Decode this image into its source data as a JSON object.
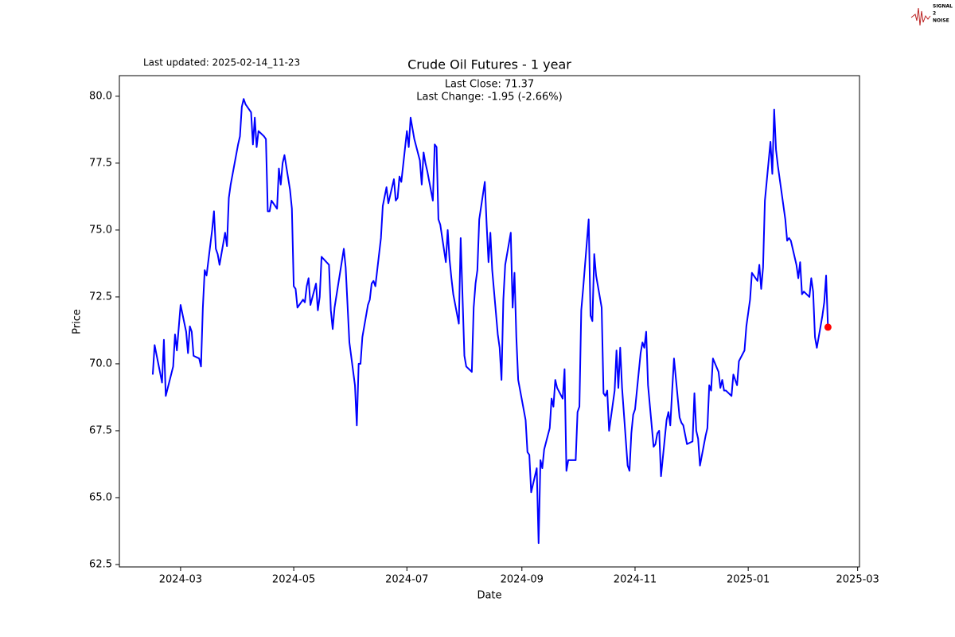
{
  "chart_data": {
    "type": "line",
    "title": "Crude Oil Futures - 1 year",
    "last_updated": "Last updated: 2025-02-14_11-23",
    "annotations": [
      "Last Close: 71.37",
      "Last Change: -1.95 (-2.66%)"
    ],
    "xlabel": "Date",
    "ylabel": "Price",
    "logo": [
      "SIGNAL",
      "2",
      "NOISE"
    ],
    "xlim": [
      "2024-01-28",
      "2025-03-02"
    ],
    "xticks": [
      {
        "value": "2024-03-01",
        "label": "2024-03"
      },
      {
        "value": "2024-05-01",
        "label": "2024-05"
      },
      {
        "value": "2024-07-01",
        "label": "2024-07"
      },
      {
        "value": "2024-09-01",
        "label": "2024-09"
      },
      {
        "value": "2024-11-01",
        "label": "2024-11"
      },
      {
        "value": "2025-01-01",
        "label": "2025-01"
      },
      {
        "value": "2025-03-01",
        "label": "2025-03"
      }
    ],
    "ylim": [
      62.41,
      80.77
    ],
    "yticks": [
      62.5,
      {
        "value": 65,
        "label": "65.0"
      },
      67.5,
      {
        "value": 70,
        "label": "70.0"
      },
      72.5,
      {
        "value": 75,
        "label": "75.0"
      },
      77.5,
      {
        "value": 80,
        "label": "80.0"
      }
    ],
    "grid": false,
    "last_point_color": "#ff0000",
    "x": [
      "2024-02-15",
      "2024-02-16",
      "2024-02-20",
      "2024-02-21",
      "2024-02-22",
      "2024-02-26",
      "2024-02-27",
      "2024-02-28",
      "2024-03-01",
      "2024-03-04",
      "2024-03-05",
      "2024-03-06",
      "2024-03-07",
      "2024-03-08",
      "2024-03-11",
      "2024-03-12",
      "2024-03-13",
      "2024-03-14",
      "2024-03-15",
      "2024-03-18",
      "2024-03-19",
      "2024-03-20",
      "2024-03-21",
      "2024-03-22",
      "2024-03-25",
      "2024-03-26",
      "2024-03-27",
      "2024-03-28",
      "2024-04-01",
      "2024-04-02",
      "2024-04-03",
      "2024-04-04",
      "2024-04-05",
      "2024-04-08",
      "2024-04-09",
      "2024-04-10",
      "2024-04-11",
      "2024-04-12",
      "2024-04-15",
      "2024-04-16",
      "2024-04-17",
      "2024-04-18",
      "2024-04-19",
      "2024-04-22",
      "2024-04-23",
      "2024-04-24",
      "2024-04-25",
      "2024-04-26",
      "2024-04-29",
      "2024-04-30",
      "2024-05-01",
      "2024-05-02",
      "2024-05-03",
      "2024-05-06",
      "2024-05-07",
      "2024-05-08",
      "2024-05-09",
      "2024-05-10",
      "2024-05-13",
      "2024-05-14",
      "2024-05-15",
      "2024-05-16",
      "2024-05-20",
      "2024-05-21",
      "2024-05-22",
      "2024-05-23",
      "2024-05-28",
      "2024-05-29",
      "2024-05-30",
      "2024-05-31",
      "2024-06-03",
      "2024-06-04",
      "2024-06-05",
      "2024-06-06",
      "2024-06-07",
      "2024-06-10",
      "2024-06-11",
      "2024-06-12",
      "2024-06-13",
      "2024-06-14",
      "2024-06-17",
      "2024-06-18",
      "2024-06-20",
      "2024-06-21",
      "2024-06-24",
      "2024-06-25",
      "2024-06-26",
      "2024-06-27",
      "2024-06-28",
      "2024-07-01",
      "2024-07-02",
      "2024-07-03",
      "2024-07-05",
      "2024-07-08",
      "2024-07-09",
      "2024-07-10",
      "2024-07-11",
      "2024-07-12",
      "2024-07-15",
      "2024-07-16",
      "2024-07-17",
      "2024-07-18",
      "2024-07-19",
      "2024-07-22",
      "2024-07-23",
      "2024-07-24",
      "2024-07-25",
      "2024-07-26",
      "2024-07-29",
      "2024-07-30",
      "2024-07-31",
      "2024-08-01",
      "2024-08-02",
      "2024-08-05",
      "2024-08-06",
      "2024-08-07",
      "2024-08-08",
      "2024-08-09",
      "2024-08-12",
      "2024-08-13",
      "2024-08-14",
      "2024-08-15",
      "2024-08-16",
      "2024-08-19",
      "2024-08-20",
      "2024-08-21",
      "2024-08-22",
      "2024-08-23",
      "2024-08-26",
      "2024-08-27",
      "2024-08-28",
      "2024-08-29",
      "2024-08-30",
      "2024-09-03",
      "2024-09-04",
      "2024-09-05",
      "2024-09-06",
      "2024-09-09",
      "2024-09-10",
      "2024-09-11",
      "2024-09-12",
      "2024-09-13",
      "2024-09-16",
      "2024-09-17",
      "2024-09-18",
      "2024-09-19",
      "2024-09-20",
      "2024-09-23",
      "2024-09-24",
      "2024-09-25",
      "2024-09-26",
      "2024-09-27",
      "2024-09-30",
      "2024-10-01",
      "2024-10-02",
      "2024-10-03",
      "2024-10-04",
      "2024-10-07",
      "2024-10-08",
      "2024-10-09",
      "2024-10-10",
      "2024-10-11",
      "2024-10-14",
      "2024-10-15",
      "2024-10-16",
      "2024-10-17",
      "2024-10-18",
      "2024-10-21",
      "2024-10-22",
      "2024-10-23",
      "2024-10-24",
      "2024-10-25",
      "2024-10-28",
      "2024-10-29",
      "2024-10-30",
      "2024-10-31",
      "2024-11-01",
      "2024-11-04",
      "2024-11-05",
      "2024-11-06",
      "2024-11-07",
      "2024-11-08",
      "2024-11-11",
      "2024-11-12",
      "2024-11-13",
      "2024-11-14",
      "2024-11-15",
      "2024-11-18",
      "2024-11-19",
      "2024-11-20",
      "2024-11-21",
      "2024-11-22",
      "2024-11-25",
      "2024-11-26",
      "2024-11-27",
      "2024-11-29",
      "2024-12-02",
      "2024-12-03",
      "2024-12-04",
      "2024-12-05",
      "2024-12-06",
      "2024-12-09",
      "2024-12-10",
      "2024-12-11",
      "2024-12-12",
      "2024-12-13",
      "2024-12-16",
      "2024-12-17",
      "2024-12-18",
      "2024-12-19",
      "2024-12-20",
      "2024-12-23",
      "2024-12-24",
      "2024-12-26",
      "2024-12-27",
      "2024-12-30",
      "2024-12-31",
      "2025-01-02",
      "2025-01-03",
      "2025-01-06",
      "2025-01-07",
      "2025-01-08",
      "2025-01-09",
      "2025-01-10",
      "2025-01-13",
      "2025-01-14",
      "2025-01-15",
      "2025-01-16",
      "2025-01-17",
      "2025-01-21",
      "2025-01-22",
      "2025-01-23",
      "2025-01-24",
      "2025-01-27",
      "2025-01-28",
      "2025-01-29",
      "2025-01-30",
      "2025-01-31",
      "2025-02-03",
      "2025-02-04",
      "2025-02-05",
      "2025-02-06",
      "2025-02-07",
      "2025-02-10",
      "2025-02-11",
      "2025-02-12",
      "2025-02-13"
    ],
    "series": [
      {
        "name": "Close",
        "color": "#0000ff",
        "values": [
          69.6,
          70.7,
          69.3,
          70.9,
          68.8,
          69.9,
          71.1,
          70.5,
          72.2,
          71.2,
          70.4,
          71.4,
          71.2,
          70.3,
          70.2,
          69.9,
          72.1,
          73.5,
          73.3,
          75.0,
          75.7,
          74.3,
          74.1,
          73.7,
          74.9,
          74.4,
          76.2,
          76.7,
          78.2,
          78.5,
          79.6,
          79.9,
          79.7,
          79.4,
          78.2,
          79.2,
          78.1,
          78.7,
          78.5,
          78.4,
          75.7,
          75.7,
          76.1,
          75.8,
          77.3,
          76.7,
          77.5,
          77.8,
          76.5,
          75.8,
          72.9,
          72.8,
          72.1,
          72.4,
          72.3,
          72.9,
          73.2,
          72.2,
          73.0,
          72.0,
          72.5,
          74.0,
          73.7,
          72.0,
          71.3,
          72.1,
          74.3,
          73.6,
          72.2,
          70.8,
          69.2,
          67.7,
          70.0,
          70.0,
          71.0,
          72.2,
          72.4,
          73.0,
          73.1,
          72.9,
          74.7,
          75.9,
          76.6,
          76.0,
          76.9,
          76.1,
          76.2,
          77.0,
          76.8,
          78.7,
          78.1,
          79.2,
          78.4,
          77.6,
          76.7,
          77.9,
          77.5,
          77.2,
          76.1,
          78.2,
          78.1,
          75.4,
          75.2,
          73.8,
          75.0,
          73.9,
          73.2,
          72.6,
          71.5,
          74.7,
          72.5,
          70.3,
          69.9,
          69.7,
          72.1,
          73.0,
          73.5,
          75.4,
          76.8,
          75.2,
          73.8,
          74.9,
          73.5,
          71.1,
          70.6,
          69.4,
          72.4,
          73.7,
          74.9,
          72.1,
          73.4,
          71.0,
          69.4,
          67.9,
          66.7,
          66.6,
          65.2,
          66.1,
          63.3,
          66.4,
          66.1,
          66.8,
          67.6,
          68.7,
          68.4,
          69.4,
          69.1,
          68.7,
          69.8,
          66.0,
          66.4,
          66.4,
          66.4,
          68.2,
          68.4,
          72.0,
          72.8,
          75.4,
          71.8,
          71.6,
          74.1,
          73.3,
          72.1,
          68.9,
          68.8,
          69.0,
          67.5,
          69.0,
          70.5,
          69.1,
          70.6,
          69.1,
          66.2,
          66.0,
          67.4,
          68.1,
          68.3,
          70.4,
          70.8,
          70.6,
          71.2,
          69.2,
          66.9,
          67.0,
          67.4,
          67.5,
          65.8,
          67.9,
          68.2,
          67.7,
          69.0,
          70.2,
          68.0,
          67.8,
          67.7,
          67.0,
          67.1,
          68.9,
          67.5,
          67.2,
          66.2,
          67.3,
          67.6,
          69.2,
          69.0,
          70.2,
          69.7,
          69.1,
          69.4,
          69.0,
          69.0,
          68.8,
          69.6,
          69.2,
          70.1,
          70.5,
          71.4,
          72.4,
          73.4,
          73.1,
          73.7,
          72.8,
          73.6,
          76.1,
          78.3,
          77.1,
          79.5,
          78.0,
          77.4,
          75.4,
          74.6,
          74.7,
          74.6,
          73.7,
          73.2,
          73.8,
          72.6,
          72.7,
          72.5,
          73.2,
          72.7,
          71.0,
          70.6,
          71.8,
          72.3,
          73.3,
          71.37
        ]
      }
    ]
  }
}
